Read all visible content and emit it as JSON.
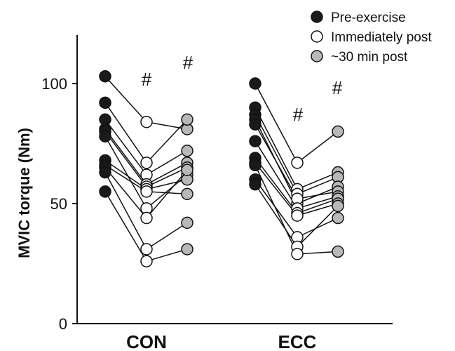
{
  "chart_data": {
    "type": "scatter",
    "ylabel": "MVIC torque (Nm)",
    "ylim": [
      0,
      120
    ],
    "yticks": [
      "0",
      "50",
      "100"
    ],
    "groups": [
      "CON",
      "ECC"
    ],
    "legend_position": "top-right",
    "series": [
      {
        "name": "Pre-exercise",
        "color": "#1a1a1a"
      },
      {
        "name": "Immediately post",
        "color": "#ffffff"
      },
      {
        "name": "~30 min post",
        "color": "#b8b8b8"
      }
    ],
    "annotations": {
      "CON": {
        "immediate": "#",
        "thirty_min": "#"
      },
      "ECC": {
        "immediate": "#",
        "thirty_min": "#"
      }
    },
    "participants": {
      "CON": [
        [
          103,
          84,
          81
        ],
        [
          92,
          67,
          85
        ],
        [
          85,
          62,
          72
        ],
        [
          81,
          58,
          67
        ],
        [
          80,
          57,
          65
        ],
        [
          78,
          48,
          62
        ],
        [
          68,
          56,
          60
        ],
        [
          66,
          55,
          54
        ],
        [
          65,
          44,
          64
        ],
        [
          63,
          31,
          42
        ],
        [
          55,
          26,
          31
        ]
      ],
      "ECC": [
        [
          100,
          67,
          80
        ],
        [
          90,
          56,
          63
        ],
        [
          87,
          54,
          61
        ],
        [
          85,
          50,
          57
        ],
        [
          83,
          52,
          55
        ],
        [
          76,
          48,
          53
        ],
        [
          69,
          46,
          52
        ],
        [
          67,
          45,
          50
        ],
        [
          60,
          36,
          44
        ],
        [
          58,
          32,
          49
        ],
        [
          66,
          29,
          30
        ]
      ]
    }
  }
}
